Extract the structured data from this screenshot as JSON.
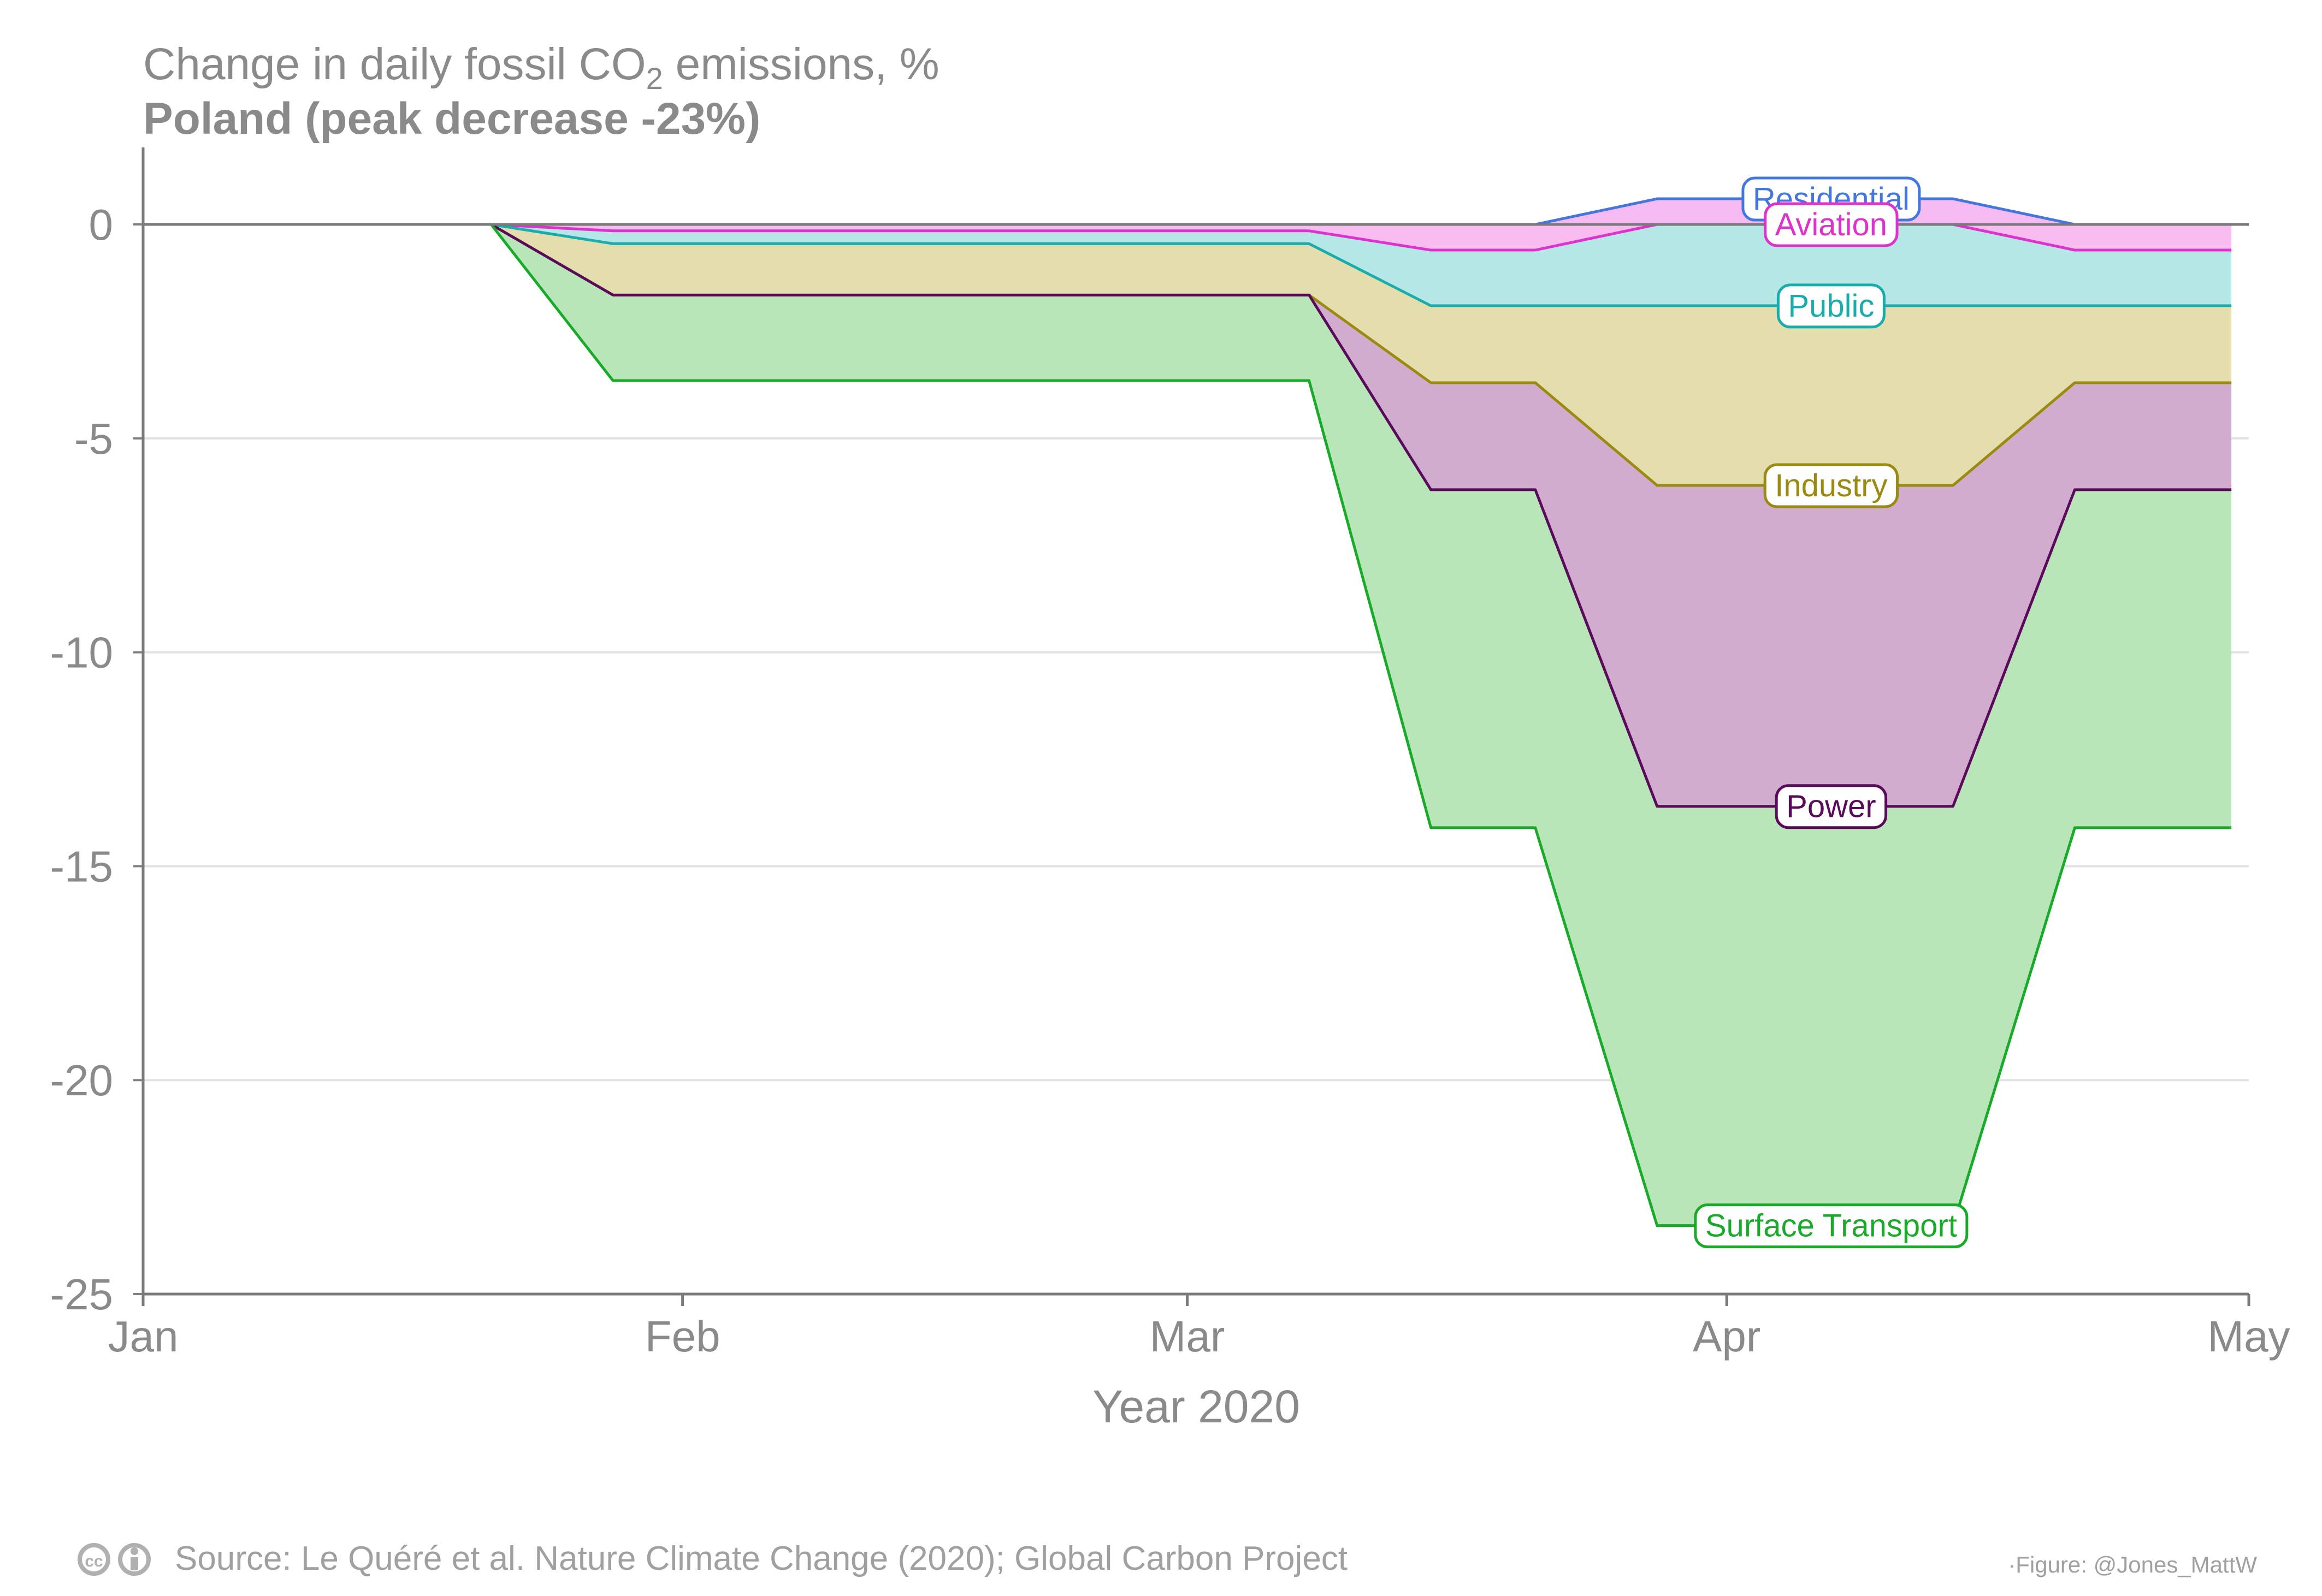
{
  "chart_data": {
    "type": "area",
    "title": "Change in daily fossil CO₂ emissions, %",
    "title_parts": [
      "Change in daily fossil CO",
      "2",
      " emissions, %"
    ],
    "subtitle": "Poland (peak decrease -23%)",
    "xlabel": "Year 2020",
    "ylabel": "",
    "x_ticks": [
      {
        "label": "Jan",
        "date": "2020-01-01"
      },
      {
        "label": "Feb",
        "date": "2020-02-01"
      },
      {
        "label": "Mar",
        "date": "2020-03-01"
      },
      {
        "label": "Apr",
        "date": "2020-04-01"
      },
      {
        "label": "May",
        "date": "2020-05-01"
      }
    ],
    "xlim": [
      "2020-01-01",
      "2020-05-01"
    ],
    "y_ticks": [
      0,
      -5,
      -10,
      -15,
      -20,
      -25
    ],
    "ylim": [
      -25,
      1.8
    ],
    "grid": "horizontal",
    "stacked": true,
    "x": [
      "2020-01-01",
      "2020-01-21",
      "2020-01-28",
      "2020-02-05",
      "2020-03-08",
      "2020-03-15",
      "2020-03-21",
      "2020-03-28",
      "2020-04-14",
      "2020-04-21",
      "2020-04-30"
    ],
    "series": [
      {
        "name": "Residential",
        "color": "#4477dd",
        "fill": "#c5d4f5",
        "values": [
          0,
          0,
          0,
          0,
          0,
          0,
          0,
          0.6,
          0.6,
          0,
          0
        ]
      },
      {
        "name": "Aviation",
        "color": "#dd33cc",
        "fill": "#f8b8f0",
        "values": [
          0,
          0,
          -0.15,
          -0.15,
          -0.15,
          -0.6,
          -0.6,
          -0.6,
          -0.6,
          -0.6,
          -0.6
        ]
      },
      {
        "name": "Public",
        "color": "#1aacac",
        "fill": "#b2e6e6",
        "values": [
          0,
          0,
          -0.3,
          -0.3,
          -0.3,
          -1.3,
          -1.3,
          -1.9,
          -1.9,
          -1.3,
          -1.3
        ]
      },
      {
        "name": "Industry",
        "color": "#9a8a10",
        "fill": "#e3dba9",
        "values": [
          0,
          0,
          -1.2,
          -1.2,
          -1.2,
          -1.8,
          -1.8,
          -4.2,
          -4.2,
          -1.8,
          -1.8
        ]
      },
      {
        "name": "Power",
        "color": "#5a0a5a",
        "fill": "#d0a8cc",
        "values": [
          0,
          0,
          0,
          0,
          0,
          -2.5,
          -2.5,
          -7.5,
          -7.5,
          -2.5,
          -2.5
        ]
      },
      {
        "name": "Surface Transport",
        "color": "#1aaa2a",
        "fill": "#b5e5b5",
        "values": [
          0,
          0,
          -2.0,
          -2.0,
          -2.0,
          -7.9,
          -7.9,
          -9.8,
          -9.8,
          -7.9,
          -7.9
        ]
      }
    ],
    "label_date": "2020-04-07",
    "source": "Source: Le Quéré et al. Nature Climate Change (2020); Global Carbon Project",
    "credit": "·Figure: @Jones_MattW",
    "license_icons": [
      "cc-icon",
      "by-person-icon"
    ]
  }
}
